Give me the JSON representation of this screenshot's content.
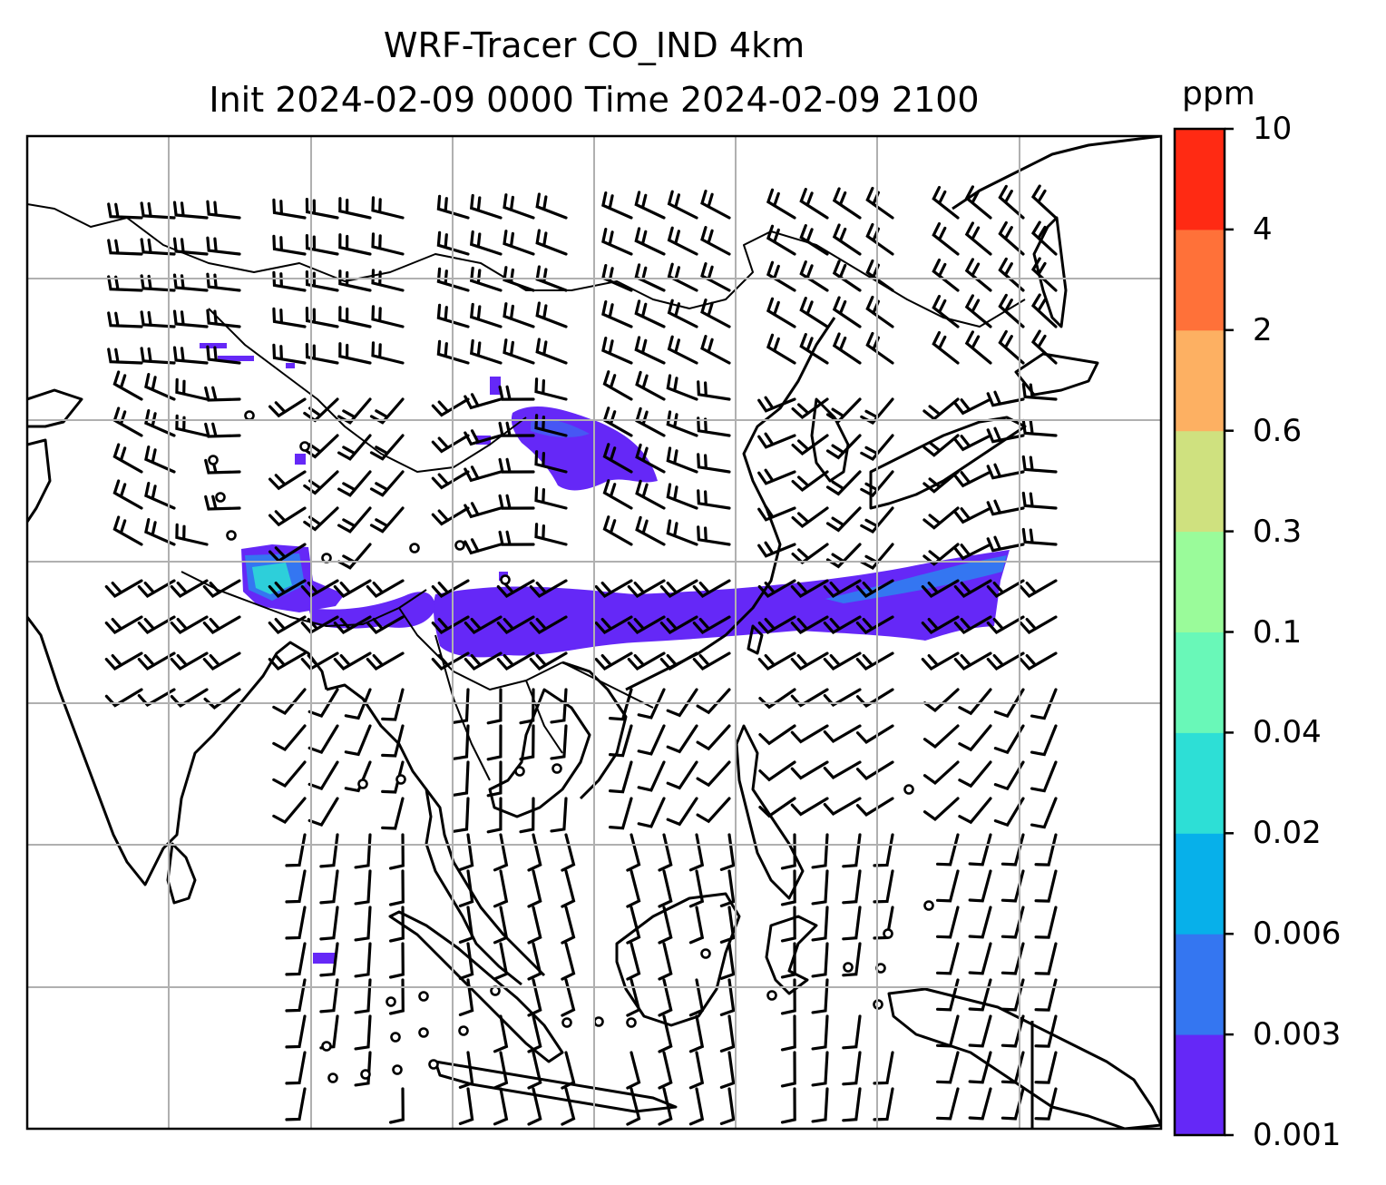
{
  "title": {
    "line1": "WRF-Tracer CO_IND 4km",
    "line2": "Init 2024-02-09 0000 Time 2024-02-09 2100"
  },
  "colorbar": {
    "unit": "ppm",
    "levels": [
      "0.001",
      "0.003",
      "0.006",
      "0.02",
      "0.04",
      "0.1",
      "0.3",
      "0.6",
      "2",
      "4",
      "10"
    ],
    "colors": [
      "#6528f7",
      "#3476f1",
      "#07b0ea",
      "#2ddfd6",
      "#69f8b8",
      "#9afb9a",
      "#cfe17f",
      "#fdb062",
      "#ff7139",
      "#ff2a13"
    ]
  },
  "map": {
    "tracer_colors": {
      "low": "#6528f7",
      "mid": "#3476f1",
      "high": "#2ddfd6"
    },
    "coastline_color": "#000000",
    "gridline_color": "#b0b0b0",
    "wind_barbs": "black",
    "calm_markers": "black-circles"
  }
}
